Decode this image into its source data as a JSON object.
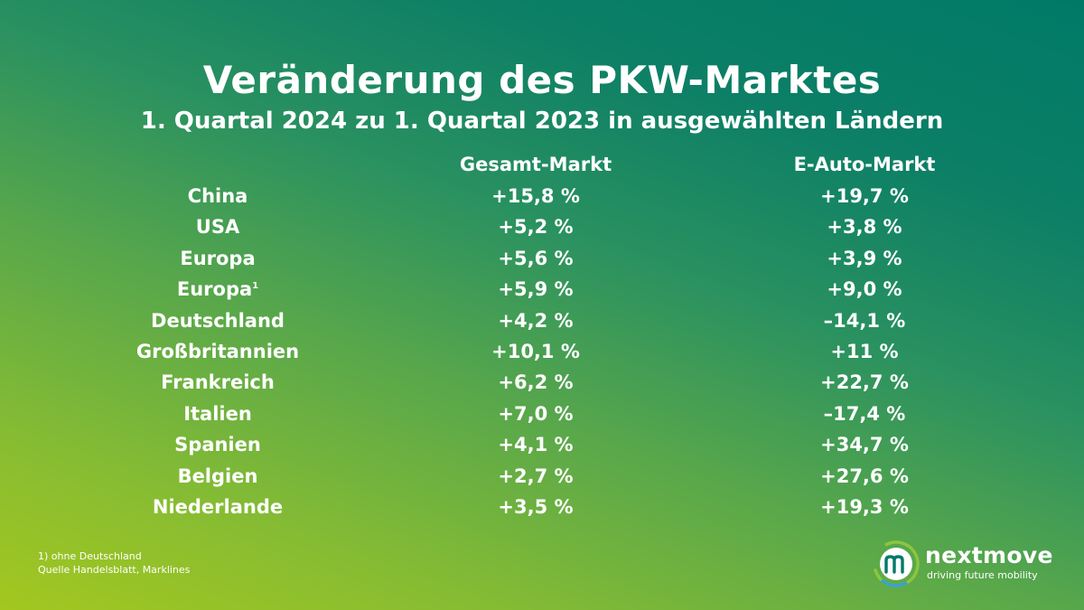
{
  "chart_data": {
    "type": "table",
    "title": "Veränderung des PKW-Marktes",
    "subtitle": "1. Quartal 2024 zu 1. Quartal 2023 in ausgewählten Ländern",
    "columns": [
      "Gesamt-Markt",
      "E-Auto-Markt"
    ],
    "rows": [
      {
        "country": "China",
        "sup": "",
        "gesamt": "+15,8 %",
        "eauto": "+19,7 %"
      },
      {
        "country": "USA",
        "sup": "",
        "gesamt": "+5,2 %",
        "eauto": "+3,8 %"
      },
      {
        "country": "Europa",
        "sup": "",
        "gesamt": "+5,6 %",
        "eauto": "+3,9 %"
      },
      {
        "country": "Europa",
        "sup": "1",
        "gesamt": "+5,9 %",
        "eauto": "+9,0 %"
      },
      {
        "country": "Deutschland",
        "sup": "",
        "gesamt": "+4,2 %",
        "eauto": "–14,1 %"
      },
      {
        "country": "Großbritannien",
        "sup": "",
        "gesamt": "+10,1 %",
        "eauto": "+11 %"
      },
      {
        "country": "Frankreich",
        "sup": "",
        "gesamt": "+6,2 %",
        "eauto": "+22,7 %"
      },
      {
        "country": "Italien",
        "sup": "",
        "gesamt": "+7,0 %",
        "eauto": "–17,4 %"
      },
      {
        "country": "Spanien",
        "sup": "",
        "gesamt": "+4,1 %",
        "eauto": "+34,7 %"
      },
      {
        "country": "Belgien",
        "sup": "",
        "gesamt": "+2,7 %",
        "eauto": "+27,6 %"
      },
      {
        "country": "Niederlande",
        "sup": "",
        "gesamt": "+3,5 %",
        "eauto": "+19,3 %"
      }
    ],
    "gesamt_values": [
      15.8,
      5.2,
      5.6,
      5.9,
      4.2,
      10.1,
      6.2,
      7.0,
      4.1,
      2.7,
      3.5
    ],
    "eauto_values": [
      19.7,
      3.8,
      3.9,
      9.0,
      -14.1,
      11,
      22.7,
      -17.4,
      34.7,
      27.6,
      19.3
    ]
  },
  "footnotes": {
    "note": "1) ohne Deutschland",
    "source": "Quelle Handelsblatt, Marklines"
  },
  "logo": {
    "name": "nextmove",
    "tagline": "driving future mobility",
    "icon": "nextmove-m-logo-icon"
  },
  "colors": {
    "background_top_right": "#007a67",
    "background_bottom_left": "#a3c71f",
    "text": "#ffffff"
  }
}
